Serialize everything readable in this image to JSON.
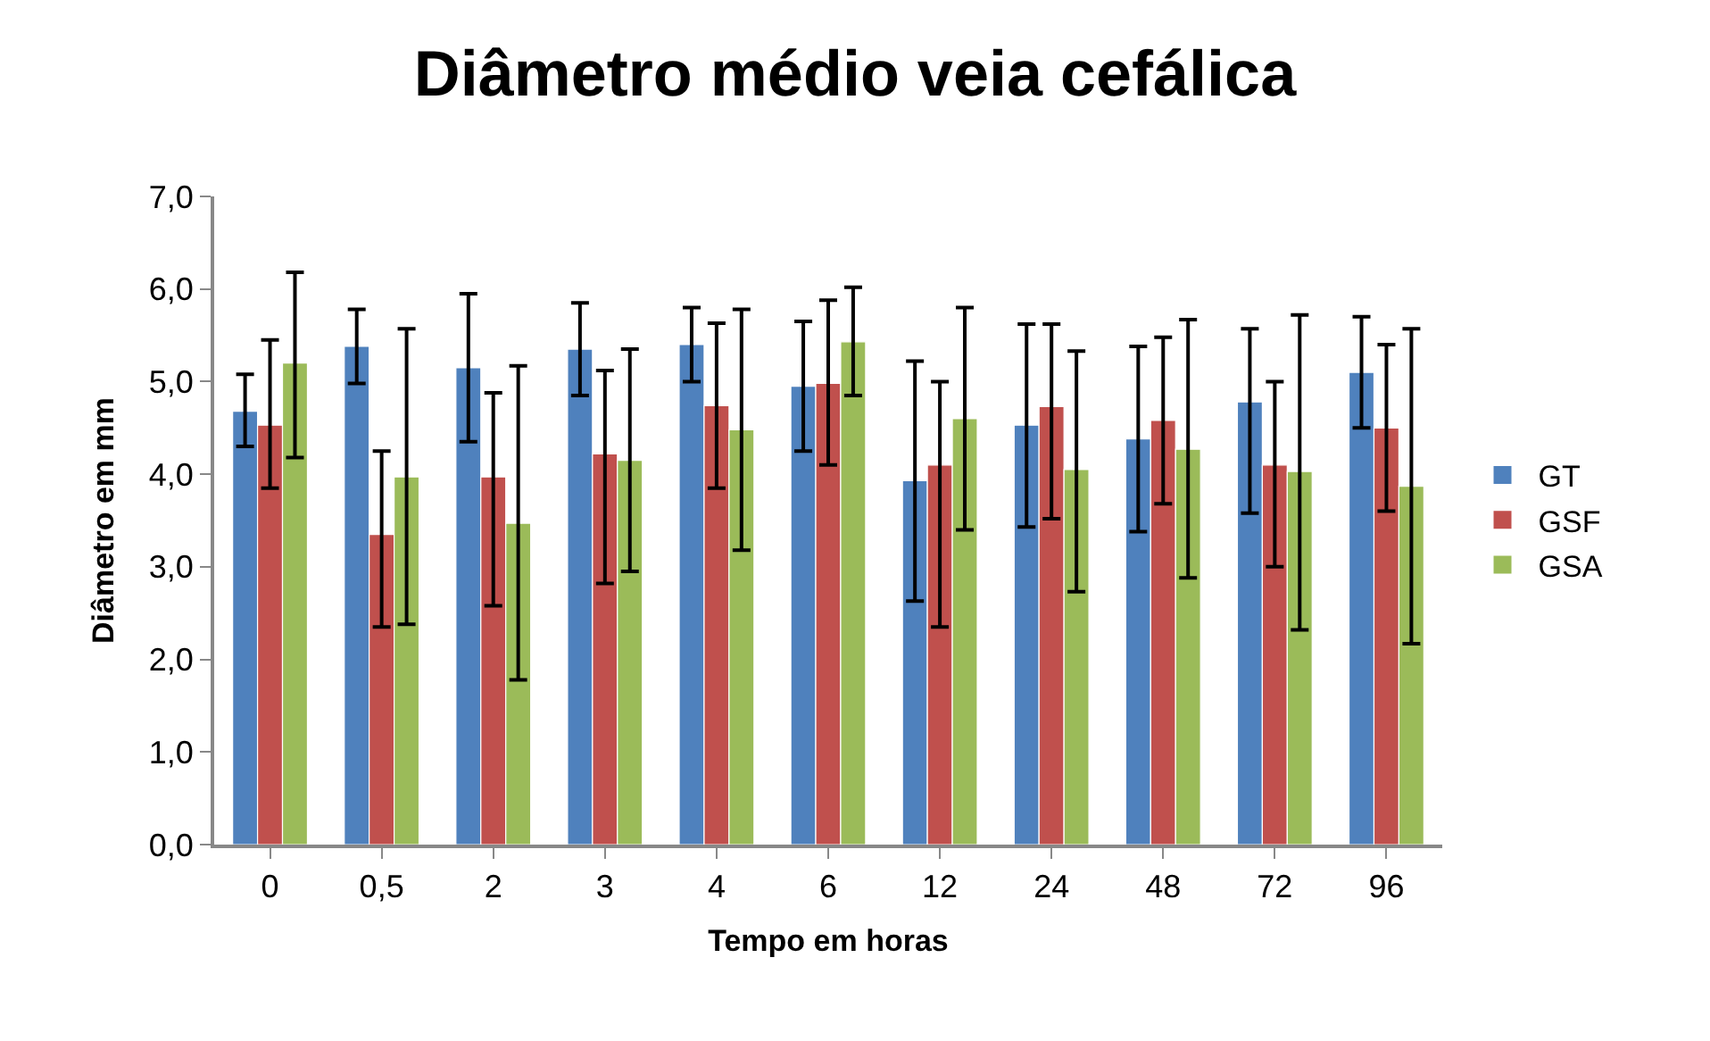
{
  "chart_data": {
    "type": "bar",
    "title": "Diâmetro médio veia cefálica",
    "xlabel": "Tempo em horas",
    "ylabel": "Diâmetro em mm",
    "categories": [
      "0",
      "0,5",
      "2",
      "3",
      "4",
      "6",
      "12",
      "24",
      "48",
      "72",
      "96"
    ],
    "series": [
      {
        "name": "GT",
        "color": "#4f81bd",
        "values": [
          4.68,
          5.38,
          5.15,
          5.35,
          5.4,
          4.95,
          3.93,
          4.53,
          4.38,
          4.78,
          5.1
        ],
        "errors": [
          [
            4.3,
            5.08
          ],
          [
            4.98,
            5.78
          ],
          [
            4.35,
            5.95
          ],
          [
            4.85,
            5.85
          ],
          [
            5.0,
            5.8
          ],
          [
            4.25,
            5.65
          ],
          [
            2.63,
            5.22
          ],
          [
            3.43,
            5.62
          ],
          [
            3.38,
            5.38
          ],
          [
            3.58,
            5.57
          ],
          [
            4.5,
            5.7
          ]
        ]
      },
      {
        "name": "GSF",
        "color": "#c0504d",
        "values": [
          4.53,
          3.35,
          3.97,
          4.22,
          4.74,
          4.98,
          4.1,
          4.73,
          4.58,
          4.1,
          4.5
        ],
        "errors": [
          [
            3.85,
            5.45
          ],
          [
            2.35,
            4.25
          ],
          [
            2.58,
            4.88
          ],
          [
            2.82,
            5.12
          ],
          [
            3.85,
            5.63
          ],
          [
            4.1,
            5.88
          ],
          [
            2.35,
            5.0
          ],
          [
            3.52,
            5.62
          ],
          [
            3.68,
            5.48
          ],
          [
            3.0,
            5.0
          ],
          [
            3.6,
            5.4
          ]
        ]
      },
      {
        "name": "GSA",
        "color": "#9bbb59",
        "values": [
          5.2,
          3.97,
          3.47,
          4.15,
          4.48,
          5.43,
          4.6,
          4.05,
          4.27,
          4.03,
          3.87
        ],
        "errors": [
          [
            4.18,
            6.18
          ],
          [
            2.38,
            5.57
          ],
          [
            1.78,
            5.17
          ],
          [
            2.95,
            5.35
          ],
          [
            3.18,
            5.78
          ],
          [
            4.85,
            6.02
          ],
          [
            3.4,
            5.8
          ],
          [
            2.73,
            5.33
          ],
          [
            2.88,
            5.67
          ],
          [
            2.32,
            5.72
          ],
          [
            2.17,
            5.57
          ]
        ]
      }
    ],
    "ylim": [
      0,
      7
    ],
    "yticks": [
      {
        "value": 0,
        "label": "0,0"
      },
      {
        "value": 1,
        "label": "1,0"
      },
      {
        "value": 2,
        "label": "2,0"
      },
      {
        "value": 3,
        "label": "3,0"
      },
      {
        "value": 4,
        "label": "4,0"
      },
      {
        "value": 5,
        "label": "5,0"
      },
      {
        "value": 6,
        "label": "6,0"
      },
      {
        "value": 7,
        "label": "7,0"
      }
    ],
    "legend": "right"
  }
}
